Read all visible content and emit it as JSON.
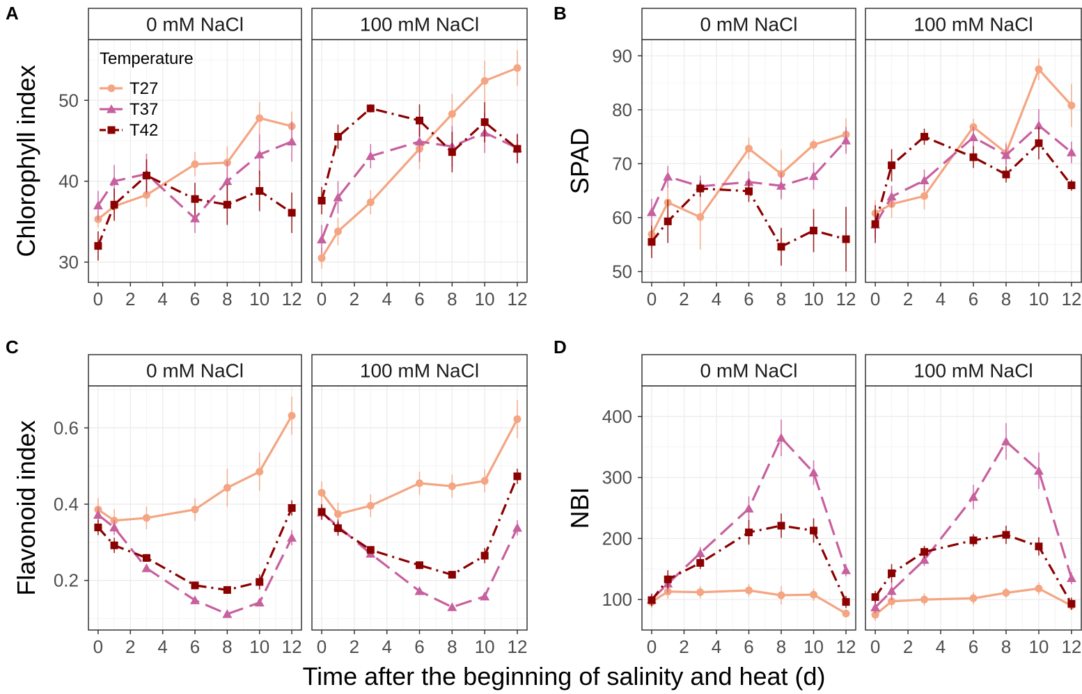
{
  "figure": {
    "xlabel": "Time after the beginning of salinity and heat (d)",
    "legend": {
      "title": "Temperature",
      "position": "top-left of panel A"
    }
  },
  "colors": {
    "T27": "#f4a582",
    "T37": "#c7609e",
    "T42": "#8b0000",
    "grid": "#ebebeb",
    "strip_bg": "#ffffff",
    "border": "#333333"
  },
  "chart_data": [
    {
      "type": "line",
      "panel": "A",
      "ylabel": "Chlorophyll index",
      "facets": [
        "0 mM NaCl",
        "100 mM NaCl"
      ],
      "x": [
        0,
        1,
        3,
        6,
        8,
        10,
        12
      ],
      "xlim": [
        -0.6,
        12.6
      ],
      "xticks": [
        0,
        2,
        4,
        6,
        8,
        10,
        12
      ],
      "ylim": [
        27.5,
        57.5
      ],
      "yticks": [
        30,
        40,
        50
      ],
      "series": [
        {
          "name": "T27",
          "values": [
            [
              35.3,
              36.9,
              38.3,
              42.1,
              42.3,
              47.8,
              46.8
            ],
            [
              30.5,
              33.8,
              37.4,
              44.0,
              48.3,
              52.4,
              54.0
            ]
          ],
          "errors": [
            [
              1.0,
              1.5,
              1.5,
              1.5,
              2.0,
              2.0,
              1.8
            ],
            [
              1.3,
              1.7,
              1.5,
              2.5,
              2.5,
              2.5,
              2.2
            ]
          ]
        },
        {
          "name": "T37",
          "values": [
            [
              37.0,
              40.0,
              40.9,
              35.4,
              40.0,
              43.3,
              44.9
            ],
            [
              32.8,
              38.0,
              43.1,
              44.9,
              44.3,
              46.0,
              44.1
            ]
          ],
          "errors": [
            [
              1.8,
              2.0,
              2.5,
              1.8,
              2.5,
              2.5,
              2.5
            ],
            [
              1.8,
              2.0,
              1.5,
              2.5,
              2.5,
              2.5,
              1.8
            ]
          ]
        },
        {
          "name": "T42",
          "values": [
            [
              32.0,
              37.1,
              40.7,
              37.8,
              37.1,
              38.8,
              36.1
            ],
            [
              37.6,
              45.5,
              49.0,
              47.5,
              43.6,
              47.3,
              44.0
            ]
          ],
          "errors": [
            [
              1.8,
              2.0,
              2.0,
              2.0,
              2.5,
              2.5,
              2.5
            ],
            [
              1.7,
              1.5,
              0.5,
              2.0,
              2.5,
              2.5,
              1.8
            ]
          ]
        }
      ]
    },
    {
      "type": "line",
      "panel": "B",
      "ylabel": "SPAD",
      "facets": [
        "0 mM NaCl",
        "100 mM NaCl"
      ],
      "x": [
        0,
        1,
        3,
        6,
        8,
        10,
        12
      ],
      "xlim": [
        -0.6,
        12.6
      ],
      "xticks": [
        0,
        2,
        4,
        6,
        8,
        10,
        12
      ],
      "ylim": [
        48,
        93
      ],
      "yticks": [
        50,
        60,
        70,
        80,
        90
      ],
      "series": [
        {
          "name": "T27",
          "values": [
            [
              56.9,
              62.8,
              60.1,
              72.8,
              68.1,
              73.5,
              75.4
            ],
            [
              60.8,
              62.5,
              64.0,
              76.8,
              72.0,
              87.5,
              80.8
            ]
          ],
          "errors": [
            [
              2.5,
              3.0,
              6.0,
              2.0,
              4.5,
              1.0,
              3.0
            ],
            [
              2.5,
              2.5,
              2.5,
              1.5,
              2.0,
              2.0,
              4.0
            ]
          ]
        },
        {
          "name": "T37",
          "values": [
            [
              61.0,
              67.6,
              65.8,
              66.6,
              65.9,
              67.7,
              74.3
            ],
            [
              58.7,
              63.9,
              66.9,
              74.9,
              71.6,
              77.1,
              72.1
            ]
          ],
          "errors": [
            [
              2.5,
              2.0,
              2.0,
              2.0,
              2.5,
              2.5,
              2.5
            ],
            [
              2.5,
              2.0,
              2.0,
              2.0,
              2.0,
              3.0,
              2.0
            ]
          ]
        },
        {
          "name": "T42",
          "values": [
            [
              55.5,
              59.3,
              65.4,
              64.9,
              54.6,
              57.6,
              56.0
            ],
            [
              58.8,
              69.7,
              75.0,
              71.2,
              68.0,
              73.8,
              66.0
            ]
          ],
          "errors": [
            [
              3.0,
              4.0,
              1.5,
              2.0,
              3.5,
              4.0,
              6.0
            ],
            [
              3.5,
              3.0,
              1.5,
              2.0,
              1.5,
              3.0,
              1.0
            ]
          ]
        }
      ]
    },
    {
      "type": "line",
      "panel": "C",
      "ylabel": "Flavonoid index",
      "facets": [
        "0 mM NaCl",
        "100 mM NaCl"
      ],
      "x": [
        0,
        1,
        3,
        6,
        8,
        10,
        12
      ],
      "xlim": [
        -0.6,
        12.6
      ],
      "xticks": [
        0,
        2,
        4,
        6,
        8,
        10,
        12
      ],
      "ylim": [
        0.07,
        0.71
      ],
      "yticks": [
        0.2,
        0.4,
        0.6
      ],
      "series": [
        {
          "name": "T27",
          "values": [
            [
              0.386,
              0.357,
              0.364,
              0.386,
              0.443,
              0.485,
              0.632
            ],
            [
              0.43,
              0.374,
              0.396,
              0.455,
              0.447,
              0.461,
              0.623
            ]
          ],
          "errors": [
            [
              0.03,
              0.03,
              0.03,
              0.03,
              0.05,
              0.05,
              0.05
            ],
            [
              0.03,
              0.03,
              0.03,
              0.03,
              0.03,
              0.03,
              0.05
            ]
          ]
        },
        {
          "name": "T37",
          "values": [
            [
              0.372,
              0.339,
              0.232,
              0.148,
              0.112,
              0.142,
              0.312
            ],
            [
              0.378,
              0.342,
              0.27,
              0.172,
              0.13,
              0.158,
              0.338
            ]
          ],
          "errors": [
            [
              0.02,
              0.02,
              0.01,
              0.01,
              0.01,
              0.01,
              0.02
            ],
            [
              0.02,
              0.02,
              0.01,
              0.01,
              0.01,
              0.01,
              0.02
            ]
          ]
        },
        {
          "name": "T42",
          "values": [
            [
              0.339,
              0.292,
              0.259,
              0.187,
              0.175,
              0.196,
              0.39
            ],
            [
              0.38,
              0.337,
              0.28,
              0.24,
              0.215,
              0.265,
              0.473
            ]
          ],
          "errors": [
            [
              0.02,
              0.02,
              0.01,
              0.01,
              0.01,
              0.02,
              0.02
            ],
            [
              0.02,
              0.02,
              0.01,
              0.01,
              0.01,
              0.02,
              0.02
            ]
          ]
        }
      ]
    },
    {
      "type": "line",
      "panel": "D",
      "ylabel": "NBI",
      "facets": [
        "0 mM NaCl",
        "100 mM NaCl"
      ],
      "x": [
        0,
        1,
        3,
        6,
        8,
        10,
        12
      ],
      "xlim": [
        -0.6,
        12.6
      ],
      "xticks": [
        0,
        2,
        4,
        6,
        8,
        10,
        12
      ],
      "ylim": [
        50,
        450
      ],
      "yticks": [
        100,
        200,
        300,
        400
      ],
      "series": [
        {
          "name": "T27",
          "values": [
            [
              96,
              113,
              112,
              115,
              107,
              108,
              77
            ],
            [
              75,
              97,
              100,
              102,
              111,
              118,
              90
            ]
          ],
          "errors": [
            [
              10,
              12,
              10,
              10,
              15,
              10,
              5
            ],
            [
              10,
              12,
              10,
              10,
              8,
              10,
              5
            ]
          ]
        },
        {
          "name": "T37",
          "values": [
            [
              100,
              126,
              176,
              249,
              365,
              308,
              148
            ],
            [
              87,
              114,
              165,
              268,
              359,
              311,
              135
            ]
          ],
          "errors": [
            [
              10,
              15,
              10,
              20,
              30,
              20,
              10
            ],
            [
              10,
              15,
              10,
              20,
              30,
              30,
              10
            ]
          ]
        },
        {
          "name": "T42",
          "values": [
            [
              99,
              133,
              160,
              210,
              221,
              213,
              96
            ],
            [
              104,
              143,
              178,
              197,
              206,
              187,
              93
            ]
          ],
          "errors": [
            [
              10,
              15,
              10,
              20,
              20,
              20,
              10
            ],
            [
              10,
              15,
              10,
              10,
              15,
              15,
              10
            ]
          ]
        }
      ]
    }
  ]
}
